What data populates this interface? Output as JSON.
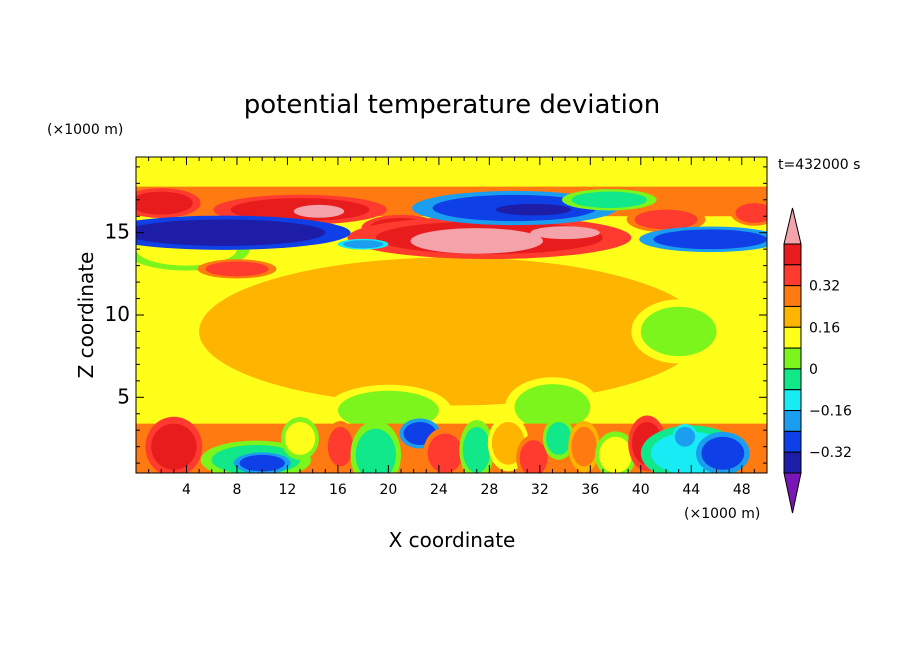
{
  "chart_data": {
    "type": "heatmap",
    "title": "potential temperature deviation",
    "time_label": "t=432000 s",
    "xlabel": "X coordinate",
    "ylabel": "Z coordinate",
    "x_unit": "(×1000 m)",
    "z_unit": "(×1000 m)",
    "xlim": [
      0,
      50
    ],
    "zlim": [
      0.4,
      19.6
    ],
    "x_ticks": [
      "4",
      "8",
      "12",
      "16",
      "20",
      "24",
      "28",
      "32",
      "36",
      "40",
      "44",
      "48"
    ],
    "z_ticks": [
      "5",
      "10",
      "15"
    ],
    "colorbar": {
      "levels": [
        -0.48,
        -0.4,
        -0.32,
        -0.24,
        -0.16,
        -0.08,
        0,
        0.08,
        0.16,
        0.24,
        0.32,
        0.4,
        0.48
      ],
      "tick_labels": [
        "0.32",
        "0.16",
        "0",
        "−0.16",
        "−0.32"
      ],
      "colors": [
        "#7a16b5",
        "#1d1da8",
        "#0f3fe6",
        "#1b9ef0",
        "#17ecf5",
        "#10e88a",
        "#7cf51c",
        "#ffff19",
        "#ffb400",
        "#ff7a10",
        "#ff3a2e",
        "#e81c1c",
        "#f3a3a9"
      ]
    },
    "features": [
      {
        "type": "rect",
        "x": [
          0,
          50
        ],
        "z": [
          0.4,
          19.6
        ],
        "value": 0.03
      },
      {
        "type": "blob",
        "x": 25,
        "z": 9,
        "rx": 20,
        "rz": 4.5,
        "value": 0.09
      },
      {
        "type": "blob",
        "x": 4,
        "z": 14,
        "rx": 4,
        "rz": 1,
        "value": 0.08
      },
      {
        "type": "blob",
        "x": 20,
        "z": 4.2,
        "rx": 4,
        "rz": 1.2,
        "value": -0.02
      },
      {
        "type": "blob",
        "x": 33,
        "z": 4.4,
        "rx": 3,
        "rz": 1.4,
        "value": -0.02
      },
      {
        "type": "blob",
        "x": 43,
        "z": 9,
        "rx": 3,
        "rz": 1.5,
        "value": -0.03
      },
      {
        "type": "band",
        "x": [
          0,
          50
        ],
        "z": [
          0.4,
          3.4
        ],
        "value": 0.18
      },
      {
        "type": "blob",
        "x": 3,
        "z": 2.0,
        "rx": 1.8,
        "rz": 1.4,
        "value": 0.33
      },
      {
        "type": "blob",
        "x": 9.5,
        "z": 1.2,
        "rx": 3.5,
        "rz": 0.9,
        "value": -0.12
      },
      {
        "type": "blob",
        "x": 10,
        "z": 1.0,
        "rx": 1.8,
        "rz": 0.5,
        "value": -0.35
      },
      {
        "type": "blob",
        "x": 13,
        "z": 2.5,
        "rx": 1.2,
        "rz": 1,
        "value": 0.08
      },
      {
        "type": "blob",
        "x": 16.2,
        "z": 2.0,
        "rx": 1.0,
        "rz": 1.2,
        "value": 0.28
      },
      {
        "type": "blob",
        "x": 19,
        "z": 1.5,
        "rx": 1.6,
        "rz": 1.6,
        "value": -0.1
      },
      {
        "type": "blob",
        "x": 22.5,
        "z": 2.8,
        "rx": 1.3,
        "rz": 0.7,
        "value": -0.36
      },
      {
        "type": "blob",
        "x": 24.5,
        "z": 1.6,
        "rx": 1.4,
        "rz": 1.2,
        "value": 0.3
      },
      {
        "type": "blob",
        "x": 27,
        "z": 1.8,
        "rx": 1.1,
        "rz": 1.4,
        "value": -0.14
      },
      {
        "type": "blob",
        "x": 29.5,
        "z": 2.2,
        "rx": 1.3,
        "rz": 1.3,
        "value": 0.1
      },
      {
        "type": "blob",
        "x": 31.5,
        "z": 1.3,
        "rx": 1.1,
        "rz": 1.1,
        "value": 0.27
      },
      {
        "type": "blob",
        "x": 33.5,
        "z": 2.5,
        "rx": 1.0,
        "rz": 1.0,
        "value": -0.12
      },
      {
        "type": "blob",
        "x": 35.5,
        "z": 2.0,
        "rx": 1.0,
        "rz": 1.2,
        "value": 0.24
      },
      {
        "type": "blob",
        "x": 38,
        "z": 1.5,
        "rx": 1.3,
        "rz": 1.1,
        "value": 0.07
      },
      {
        "type": "blob",
        "x": 40.5,
        "z": 2.2,
        "rx": 1.2,
        "rz": 1.3,
        "value": 0.33
      },
      {
        "type": "blob",
        "x": 44,
        "z": 1.6,
        "rx": 3.2,
        "rz": 1.3,
        "value": -0.16
      },
      {
        "type": "blob",
        "x": 46.5,
        "z": 1.6,
        "rx": 1.7,
        "rz": 1.0,
        "value": -0.38
      },
      {
        "type": "blob",
        "x": 43.5,
        "z": 2.6,
        "rx": 0.8,
        "rz": 0.6,
        "value": -0.3
      },
      {
        "type": "band",
        "x": [
          0,
          50
        ],
        "z": [
          16.0,
          17.8
        ],
        "value": 0.2
      },
      {
        "type": "blob",
        "x": 2,
        "z": 16.8,
        "rx": 2.5,
        "rz": 0.7,
        "value": 0.35
      },
      {
        "type": "blob",
        "x": 13,
        "z": 16.4,
        "rx": 5.5,
        "rz": 0.7,
        "value": 0.35
      },
      {
        "type": "blob",
        "x": 14.5,
        "z": 16.3,
        "rx": 1.6,
        "rz": 0.3,
        "value": 0.5
      },
      {
        "type": "blob",
        "x": 21,
        "z": 15.3,
        "rx": 2.5,
        "rz": 0.6,
        "value": 0.36
      },
      {
        "type": "blob",
        "x": 28,
        "z": 14.7,
        "rx": 9,
        "rz": 1.0,
        "value": 0.36
      },
      {
        "type": "blob",
        "x": 27,
        "z": 14.5,
        "rx": 4.2,
        "rz": 0.6,
        "value": 0.52
      },
      {
        "type": "blob",
        "x": 34,
        "z": 15,
        "rx": 2.2,
        "rz": 0.3,
        "value": 0.5
      },
      {
        "type": "blob",
        "x": 42,
        "z": 15.8,
        "rx": 2.5,
        "rz": 0.6,
        "value": 0.3
      },
      {
        "type": "blob",
        "x": 49,
        "z": 16.2,
        "rx": 1.5,
        "rz": 0.6,
        "value": 0.3
      },
      {
        "type": "blob",
        "x": 8,
        "z": 12.8,
        "rx": 2.5,
        "rz": 0.45,
        "value": 0.3
      },
      {
        "type": "blob",
        "x": 7,
        "z": 15.0,
        "rx": 8,
        "rz": 0.8,
        "value": -0.42
      },
      {
        "type": "blob",
        "x": 30,
        "z": 16.5,
        "rx": 6.5,
        "rz": 0.8,
        "value": -0.36
      },
      {
        "type": "blob",
        "x": 31.5,
        "z": 16.4,
        "rx": 3,
        "rz": 0.35,
        "value": -0.46
      },
      {
        "type": "blob",
        "x": 45.5,
        "z": 14.6,
        "rx": 4.5,
        "rz": 0.6,
        "value": -0.36
      },
      {
        "type": "blob",
        "x": 18,
        "z": 14.3,
        "rx": 1.6,
        "rz": 0.25,
        "value": -0.3
      },
      {
        "type": "blob",
        "x": 37.5,
        "z": 17.0,
        "rx": 3,
        "rz": 0.5,
        "value": -0.12
      }
    ]
  }
}
